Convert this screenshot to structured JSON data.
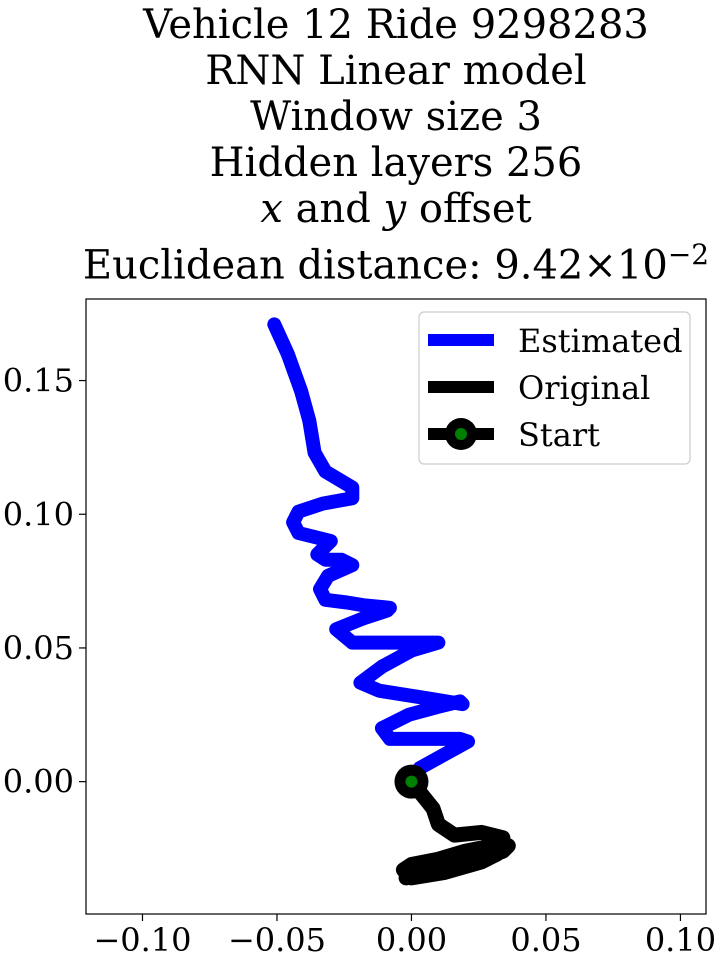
{
  "chart_data": {
    "type": "line",
    "title_lines": [
      "Vehicle 12 Ride 9298283",
      "RNN Linear model",
      "Window size 3",
      "Hidden layers 256"
    ],
    "offset_line": {
      "x": "x",
      "and": "and",
      "y": "y",
      "rest": "offset"
    },
    "distance_line": {
      "prefix": "Euclidean distance: 9.42",
      "times": "×",
      "base": "10",
      "exponent": "−2"
    },
    "xlabel": "",
    "ylabel": "",
    "xlim": [
      -0.121,
      0.1095
    ],
    "ylim": [
      -0.0495,
      0.1805
    ],
    "xticks": [
      -0.1,
      -0.05,
      0.0,
      0.05,
      0.1
    ],
    "xtick_labels": [
      "−0.10",
      "−0.05",
      "0.00",
      "0.05",
      "0.10"
    ],
    "yticks": [
      0.0,
      0.05,
      0.1,
      0.15
    ],
    "ytick_labels": [
      "0.00",
      "0.05",
      "0.10",
      "0.15"
    ],
    "grid": false,
    "legend_position": "top-right",
    "series": [
      {
        "name": "Estimated",
        "color": "#0000ff",
        "x": [
          0.0,
          0.003,
          0.012,
          0.021,
          0.018,
          0.009,
          -0.008,
          -0.011,
          -0.001,
          0.01,
          0.018,
          0.019,
          0.007,
          -0.012,
          -0.019,
          -0.011,
          0.0,
          0.01,
          0.006,
          -0.01,
          -0.022,
          -0.028,
          -0.018,
          -0.009,
          -0.008,
          -0.018,
          -0.024,
          -0.032,
          -0.034,
          -0.031,
          -0.022,
          -0.026,
          -0.032,
          -0.035,
          -0.03,
          -0.042,
          -0.044,
          -0.042,
          -0.033,
          -0.022,
          -0.022,
          -0.032,
          -0.036,
          -0.038,
          -0.041,
          -0.046,
          -0.051
        ],
        "y": [
          0.0,
          0.005,
          0.01,
          0.015,
          0.016,
          0.016,
          0.016,
          0.02,
          0.025,
          0.028,
          0.03,
          0.029,
          0.031,
          0.034,
          0.037,
          0.043,
          0.049,
          0.052,
          0.052,
          0.052,
          0.052,
          0.057,
          0.061,
          0.064,
          0.065,
          0.066,
          0.067,
          0.068,
          0.072,
          0.077,
          0.081,
          0.083,
          0.083,
          0.085,
          0.09,
          0.093,
          0.097,
          0.101,
          0.104,
          0.106,
          0.11,
          0.116,
          0.123,
          0.135,
          0.146,
          0.16,
          0.171
        ]
      },
      {
        "name": "Original",
        "color": "#000000",
        "x": [
          0.0,
          0.004,
          0.008,
          0.01,
          0.016,
          0.026,
          0.034,
          0.03,
          0.02,
          0.01,
          0.0,
          -0.003,
          -0.001,
          0.008,
          0.022,
          0.034,
          0.036,
          0.028,
          0.014,
          0.004,
          -0.002,
          0.0,
          0.012,
          0.026,
          0.032,
          0.024,
          0.01,
          0.0,
          -0.002,
          0.002
        ],
        "y": [
          0.0,
          -0.005,
          -0.01,
          -0.016,
          -0.02,
          -0.019,
          -0.021,
          -0.024,
          -0.026,
          -0.029,
          -0.031,
          -0.033,
          -0.035,
          -0.033,
          -0.03,
          -0.026,
          -0.024,
          -0.025,
          -0.028,
          -0.032,
          -0.035,
          -0.036,
          -0.034,
          -0.03,
          -0.027,
          -0.026,
          -0.031,
          -0.035,
          -0.036,
          -0.034
        ]
      },
      {
        "name": "Start",
        "color": "#000000",
        "marker_face_color": "#008000",
        "x": [
          0.0
        ],
        "y": [
          0.0
        ]
      }
    ]
  }
}
